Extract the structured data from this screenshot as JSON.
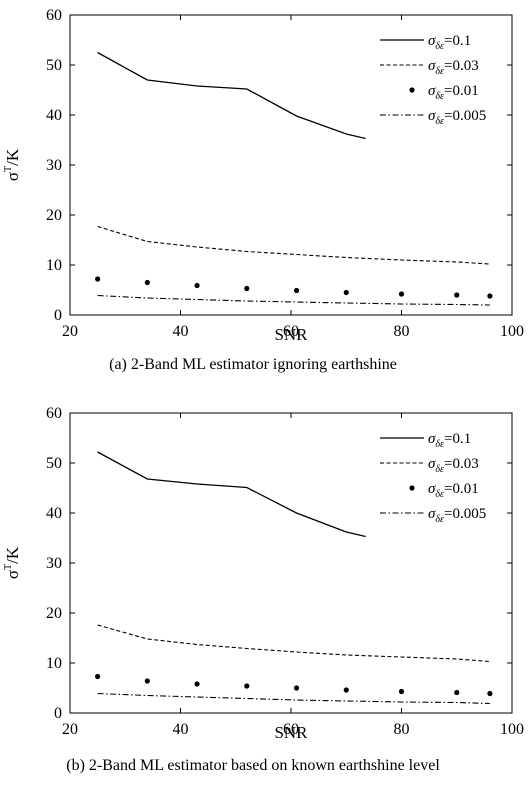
{
  "chart_data": [
    {
      "type": "line",
      "caption": "(a) 2-Band ML estimator ignoring earthshine",
      "xlabel": "SNR",
      "ylabel": "σT/K",
      "ylabel_main": "σ",
      "ylabel_sup": "T",
      "ylabel_unit": "/K",
      "xlim": [
        20,
        100
      ],
      "ylim": [
        0,
        60
      ],
      "xticks": [
        "20",
        "40",
        "60",
        "80",
        "100"
      ],
      "yticks": [
        "0",
        "10",
        "20",
        "30",
        "40",
        "50",
        "60"
      ],
      "legend_position": "top-right",
      "series": [
        {
          "name": "σδε=0.1",
          "sym": "σ",
          "sub": "δε",
          "val": "=0.1",
          "style": "solid",
          "x": [
            25,
            34,
            43,
            52,
            61,
            70,
            73.5
          ],
          "y": [
            52.5,
            47,
            45.8,
            45.2,
            39.8,
            36.2,
            35.3
          ]
        },
        {
          "name": "σδε=0.03",
          "sym": "σ",
          "sub": "δε",
          "val": "=0.03",
          "style": "dashed",
          "x": [
            25,
            34,
            43,
            52,
            61,
            70,
            80,
            90,
            96
          ],
          "y": [
            17.7,
            14.7,
            13.6,
            12.7,
            12.1,
            11.5,
            11.0,
            10.6,
            10.2
          ]
        },
        {
          "name": "σδε=0.01",
          "sym": "σ",
          "sub": "δε",
          "val": "=0.01",
          "style": "dots",
          "x": [
            25,
            34,
            43,
            52,
            61,
            70,
            80,
            90,
            96
          ],
          "y": [
            7.2,
            6.5,
            5.9,
            5.3,
            4.9,
            4.5,
            4.2,
            4.0,
            3.8
          ]
        },
        {
          "name": "σδε=0.005",
          "sym": "σ",
          "sub": "δε",
          "val": "=0.005",
          "style": "dashdot",
          "x": [
            25,
            34,
            43,
            52,
            61,
            70,
            80,
            90,
            96
          ],
          "y": [
            3.9,
            3.4,
            3.1,
            2.8,
            2.6,
            2.4,
            2.2,
            2.1,
            2.0
          ]
        }
      ]
    },
    {
      "type": "line",
      "caption": "(b) 2-Band ML estimator based on known earthshine level",
      "xlabel": "SNR",
      "ylabel": "σT/K",
      "ylabel_main": "σ",
      "ylabel_sup": "T",
      "ylabel_unit": "/K",
      "xlim": [
        20,
        100
      ],
      "ylim": [
        0,
        60
      ],
      "xticks": [
        "20",
        "40",
        "60",
        "80",
        "100"
      ],
      "yticks": [
        "0",
        "10",
        "20",
        "30",
        "40",
        "50",
        "60"
      ],
      "legend_position": "top-right",
      "series": [
        {
          "name": "σδε=0.1",
          "sym": "σ",
          "sub": "δε",
          "val": "=0.1",
          "style": "solid",
          "x": [
            25,
            34,
            43,
            52,
            61,
            70,
            73.5
          ],
          "y": [
            52.2,
            46.8,
            45.8,
            45.1,
            40.0,
            36.2,
            35.3
          ]
        },
        {
          "name": "σδε=0.03",
          "sym": "σ",
          "sub": "δε",
          "val": "=0.03",
          "style": "dashed",
          "x": [
            25,
            34,
            43,
            52,
            61,
            70,
            80,
            90,
            96
          ],
          "y": [
            17.6,
            14.8,
            13.7,
            12.9,
            12.2,
            11.6,
            11.2,
            10.8,
            10.3
          ]
        },
        {
          "name": "σδε=0.01",
          "sym": "σ",
          "sub": "δε",
          "val": "=0.01",
          "style": "dots",
          "x": [
            25,
            34,
            43,
            52,
            61,
            70,
            80,
            90,
            96
          ],
          "y": [
            7.3,
            6.4,
            5.8,
            5.4,
            5.0,
            4.6,
            4.3,
            4.1,
            3.9
          ]
        },
        {
          "name": "σδε=0.005",
          "sym": "σ",
          "sub": "δε",
          "val": "=0.005",
          "style": "dashdot",
          "x": [
            25,
            34,
            43,
            52,
            61,
            70,
            80,
            90,
            96
          ],
          "y": [
            3.9,
            3.5,
            3.2,
            2.9,
            2.6,
            2.4,
            2.2,
            2.1,
            1.9
          ]
        }
      ]
    }
  ]
}
